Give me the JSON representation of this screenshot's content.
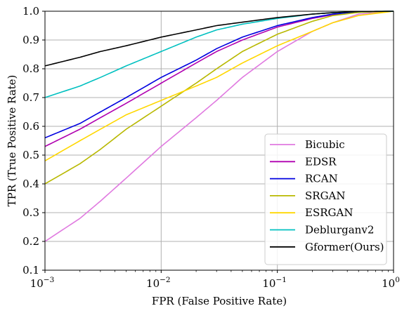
{
  "chart_data": {
    "type": "line",
    "xlabel": "FPR (False Positive Rate)",
    "ylabel": "TPR (True Positive Rate)",
    "xscale": "log",
    "xlim": [
      0.001,
      1
    ],
    "ylim": [
      0.1,
      1.0
    ],
    "grid": true,
    "legend_position": "lower-right",
    "x_ticks": [
      {
        "value": 0.001,
        "base": "10",
        "exp": "−3"
      },
      {
        "value": 0.01,
        "base": "10",
        "exp": "−2"
      },
      {
        "value": 0.1,
        "base": "10",
        "exp": "−1"
      },
      {
        "value": 1,
        "base": "10",
        "exp": "0"
      }
    ],
    "y_ticks": [
      {
        "value": 0.1,
        "label": "0.1"
      },
      {
        "value": 0.2,
        "label": "0.2"
      },
      {
        "value": 0.3,
        "label": "0.3"
      },
      {
        "value": 0.4,
        "label": "0.4"
      },
      {
        "value": 0.5,
        "label": "0.5"
      },
      {
        "value": 0.6,
        "label": "0.6"
      },
      {
        "value": 0.7,
        "label": "0.7"
      },
      {
        "value": 0.8,
        "label": "0.8"
      },
      {
        "value": 0.9,
        "label": "0.9"
      },
      {
        "value": 1.0,
        "label": "1.0"
      }
    ],
    "x": [
      0.001,
      0.002,
      0.003,
      0.005,
      0.01,
      0.02,
      0.03,
      0.05,
      0.1,
      0.2,
      0.3,
      0.5,
      1.0
    ],
    "series": [
      {
        "name": "Bicubic",
        "color": "#e07ae0",
        "values": [
          0.2,
          0.28,
          0.34,
          0.42,
          0.53,
          0.63,
          0.69,
          0.77,
          0.86,
          0.93,
          0.96,
          0.99,
          1.0
        ]
      },
      {
        "name": "EDSR",
        "color": "#b000b0",
        "values": [
          0.53,
          0.59,
          0.63,
          0.68,
          0.75,
          0.82,
          0.86,
          0.9,
          0.945,
          0.975,
          0.988,
          0.997,
          1.0
        ]
      },
      {
        "name": "RCAN",
        "color": "#0000e0",
        "values": [
          0.56,
          0.61,
          0.65,
          0.7,
          0.77,
          0.83,
          0.87,
          0.91,
          0.95,
          0.978,
          0.99,
          0.997,
          1.0
        ]
      },
      {
        "name": "SRGAN",
        "color": "#b8b800",
        "values": [
          0.4,
          0.47,
          0.52,
          0.59,
          0.67,
          0.75,
          0.8,
          0.86,
          0.92,
          0.965,
          0.985,
          0.996,
          1.0
        ]
      },
      {
        "name": "ESRGAN",
        "color": "#ffd700",
        "values": [
          0.48,
          0.55,
          0.59,
          0.64,
          0.69,
          0.74,
          0.77,
          0.82,
          0.88,
          0.93,
          0.96,
          0.985,
          1.0
        ]
      },
      {
        "name": "Deblurganv2",
        "color": "#00c0c0",
        "values": [
          0.7,
          0.74,
          0.77,
          0.81,
          0.86,
          0.91,
          0.935,
          0.955,
          0.975,
          0.99,
          0.995,
          0.999,
          1.0
        ]
      },
      {
        "name": "Gformer(Ours)",
        "color": "#000000",
        "values": [
          0.81,
          0.84,
          0.86,
          0.88,
          0.91,
          0.935,
          0.95,
          0.962,
          0.978,
          0.99,
          0.995,
          0.999,
          1.0
        ]
      }
    ]
  }
}
